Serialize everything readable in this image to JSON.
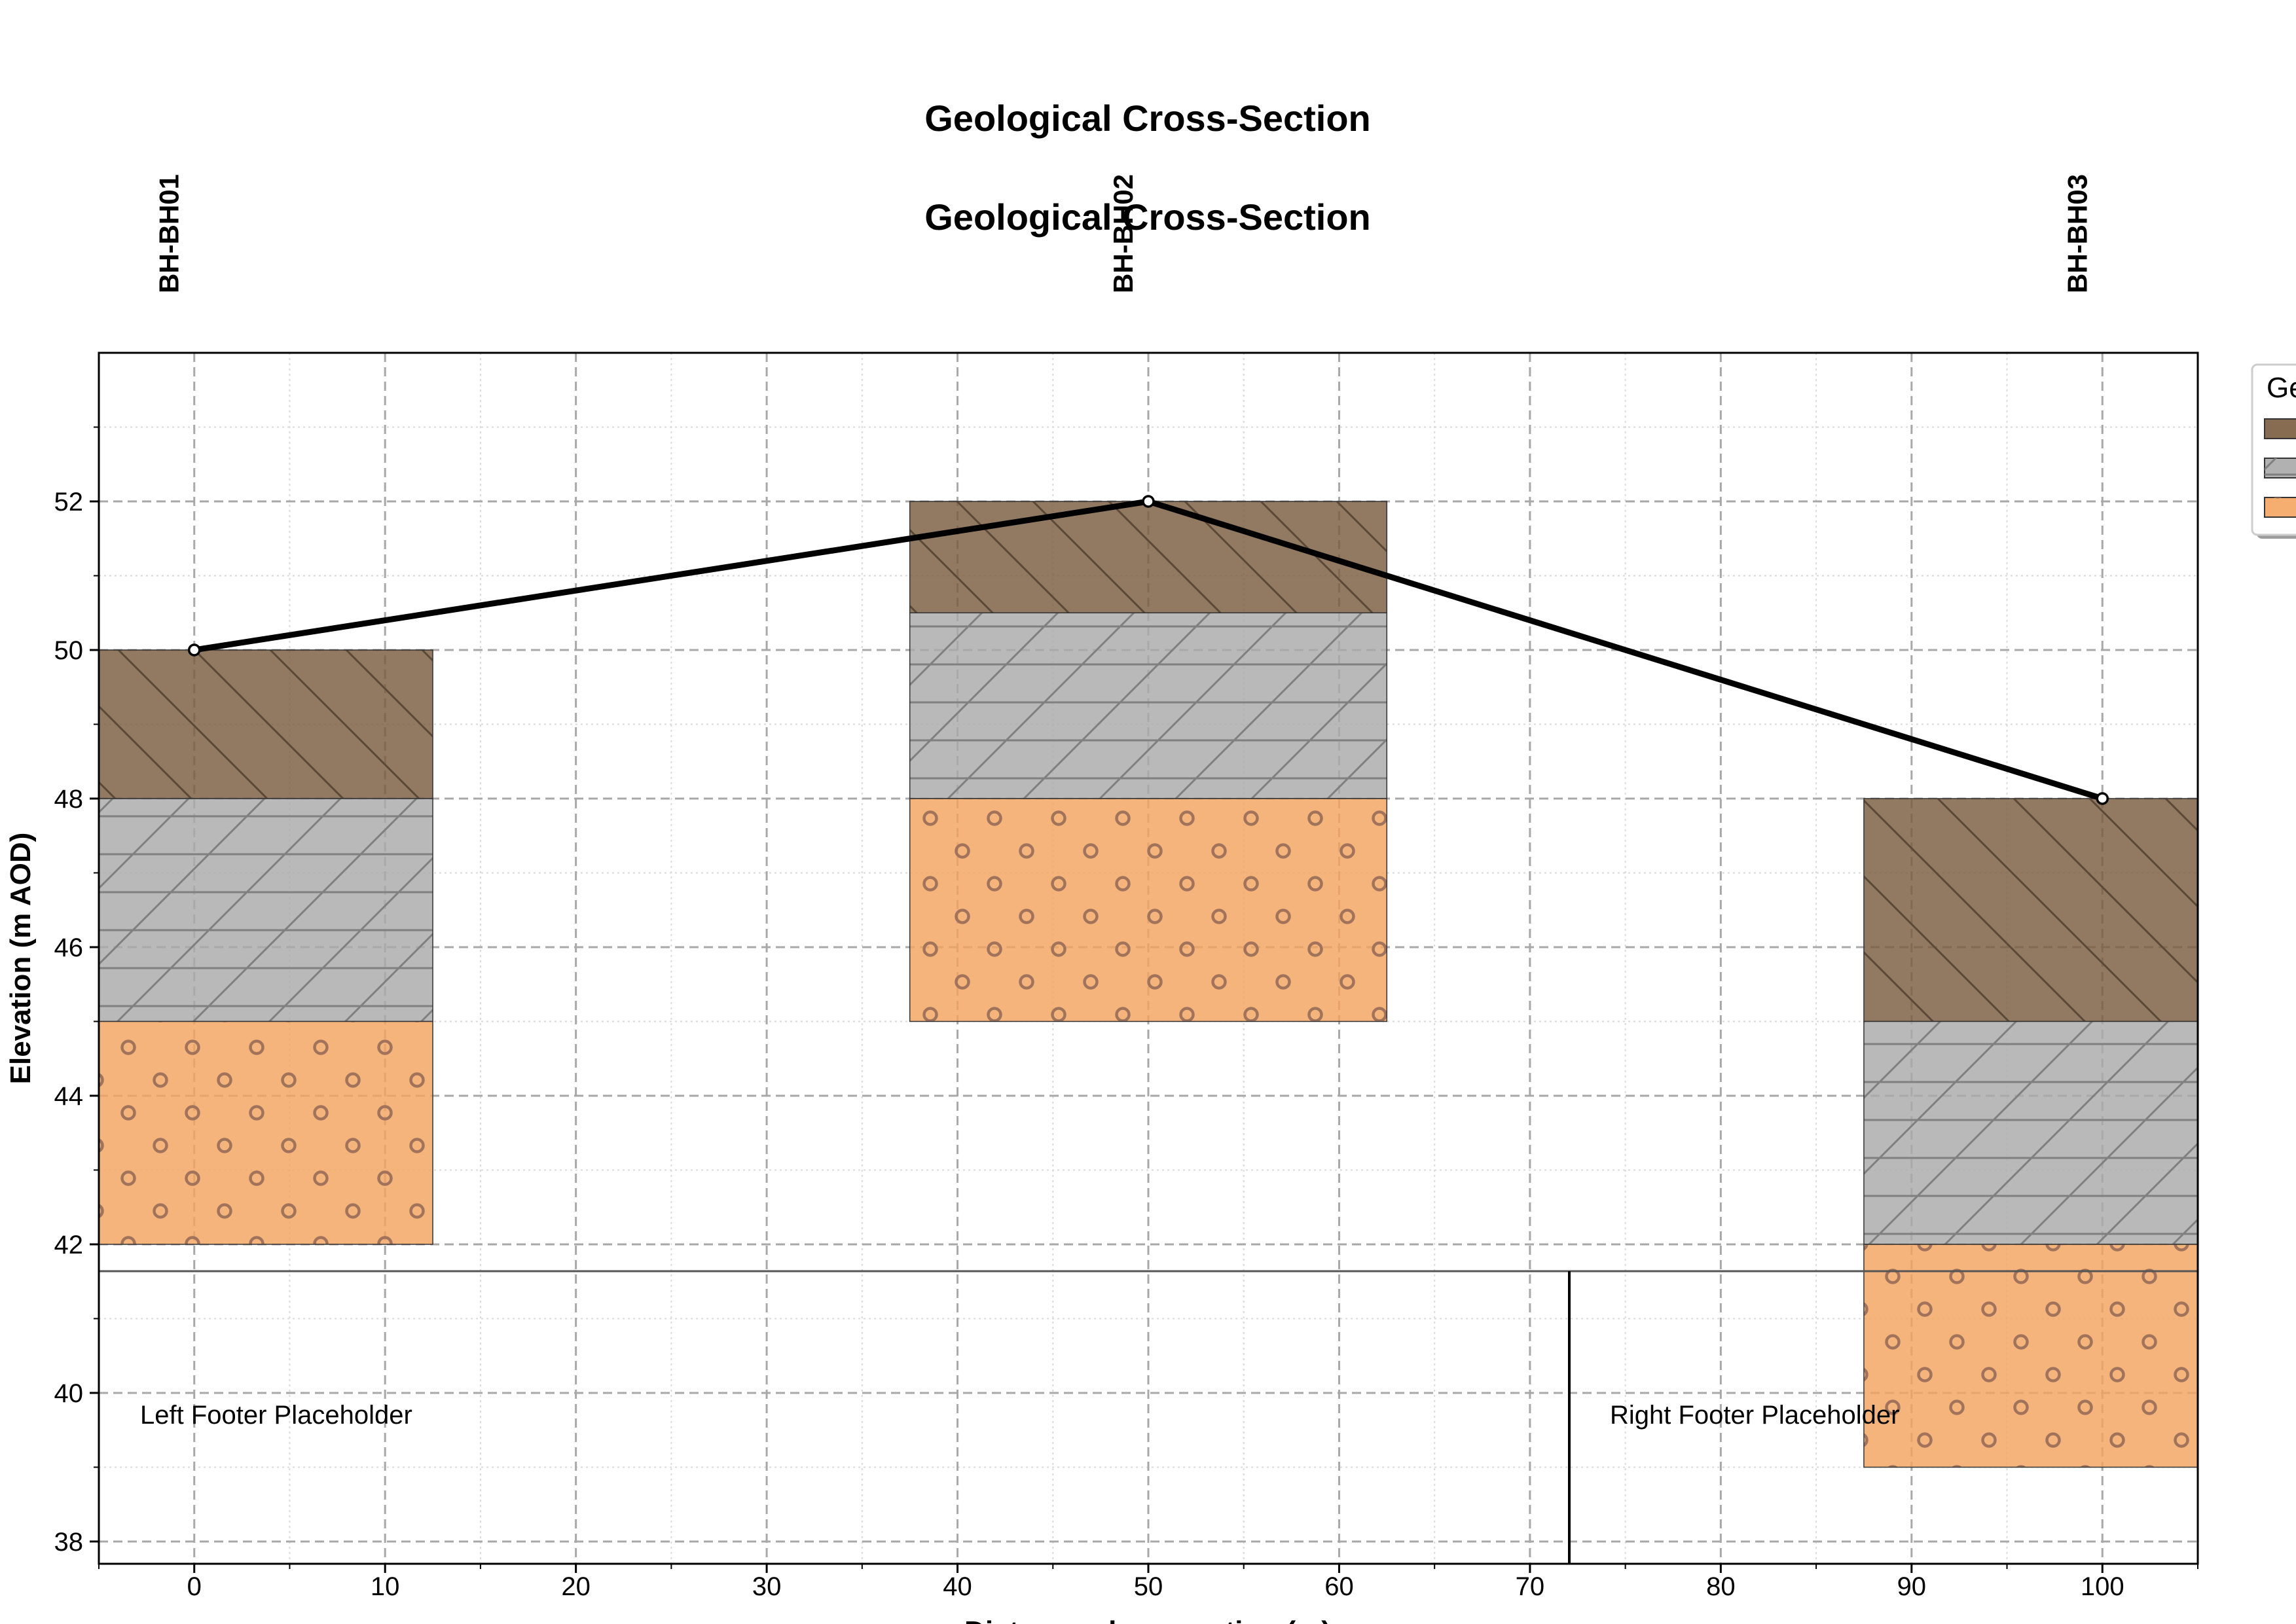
{
  "chart_data": {
    "type": "cross-section",
    "titles": [
      "Geological Cross-Section",
      "Geological Cross-Section"
    ],
    "xlabel": "Distance along section (m)",
    "ylabel": "Elevation (m AOD)",
    "xlim": [
      -5,
      105
    ],
    "ylim": [
      37.7,
      54
    ],
    "x_ticks": [
      0,
      10,
      20,
      30,
      40,
      50,
      60,
      70,
      80,
      90,
      100
    ],
    "y_ticks": [
      38,
      40,
      42,
      44,
      46,
      48,
      50,
      52
    ],
    "grid": true,
    "colors": {
      "made_ground": "#7a5c3e",
      "clay": "#a9a9a9",
      "sand": "#f4a460",
      "ground_line": "#000000"
    },
    "legend": {
      "placement": "right, outside plot, cut off",
      "title": "Ge",
      "swatches": [
        "made_ground",
        "clay",
        "sand"
      ]
    },
    "boreholes": [
      {
        "name": "BH-BH01",
        "x": 0,
        "left": -5,
        "right": 12.5,
        "layers": [
          {
            "material": "made_ground",
            "top": 50,
            "bottom": 48
          },
          {
            "material": "clay",
            "top": 48,
            "bottom": 45
          },
          {
            "material": "sand",
            "top": 45,
            "bottom": 42
          }
        ]
      },
      {
        "name": "BH-BH02",
        "x": 50,
        "left": 37.5,
        "right": 62.5,
        "layers": [
          {
            "material": "made_ground",
            "top": 52,
            "bottom": 50.5
          },
          {
            "material": "clay",
            "top": 50.5,
            "bottom": 48
          },
          {
            "material": "sand",
            "top": 48,
            "bottom": 45
          }
        ]
      },
      {
        "name": "BH-BH03",
        "x": 100,
        "left": 87.5,
        "right": 105,
        "layers": [
          {
            "material": "made_ground",
            "top": 48,
            "bottom": 45
          },
          {
            "material": "clay",
            "top": 45,
            "bottom": 42
          },
          {
            "material": "sand",
            "top": 42,
            "bottom": 39
          }
        ]
      }
    ],
    "ground_surface": {
      "x": [
        0,
        50,
        100
      ],
      "y": [
        50,
        52,
        48
      ]
    },
    "footer": {
      "left_text": "Left Footer Placeholder",
      "right_text": "Right Footer Placeholder"
    }
  }
}
